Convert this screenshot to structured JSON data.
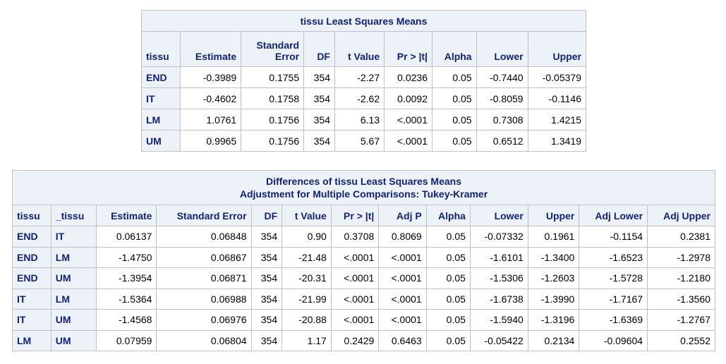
{
  "table1": {
    "title": "tissu Least Squares Means",
    "headers": [
      "tissu",
      "Estimate",
      "Standard\nError",
      "DF",
      "t Value",
      "Pr > |t|",
      "Alpha",
      "Lower",
      "Upper"
    ],
    "header_line1": [
      "",
      "",
      "Standard",
      "",
      "",
      "",
      "",
      "",
      ""
    ],
    "header_line2": [
      "tissu",
      "Estimate",
      "Error",
      "DF",
      "t Value",
      "Pr > |t|",
      "Alpha",
      "Lower",
      "Upper"
    ],
    "rows": [
      [
        "END",
        "-0.3989",
        "0.1755",
        "354",
        "-2.27",
        "0.0236",
        "0.05",
        "-0.7440",
        "-0.05379"
      ],
      [
        "IT",
        "-0.4602",
        "0.1758",
        "354",
        "-2.62",
        "0.0092",
        "0.05",
        "-0.8059",
        "-0.1146"
      ],
      [
        "LM",
        "1.0761",
        "0.1756",
        "354",
        "6.13",
        "<.0001",
        "0.05",
        "0.7308",
        "1.4215"
      ],
      [
        "UM",
        "0.9965",
        "0.1756",
        "354",
        "5.67",
        "<.0001",
        "0.05",
        "0.6512",
        "1.3419"
      ]
    ]
  },
  "table2": {
    "title": "Differences of tissu Least Squares Means",
    "subtitle": "Adjustment for Multiple Comparisons: Tukey-Kramer",
    "headers": [
      "tissu",
      "_tissu",
      "Estimate",
      "Standard Error",
      "DF",
      "t Value",
      "Pr > |t|",
      "Adj P",
      "Alpha",
      "Lower",
      "Upper",
      "Adj Lower",
      "Adj Upper"
    ],
    "rows": [
      [
        "END",
        "IT",
        "0.06137",
        "0.06848",
        "354",
        "0.90",
        "0.3708",
        "0.8069",
        "0.05",
        "-0.07332",
        "0.1961",
        "-0.1154",
        "0.2381"
      ],
      [
        "END",
        "LM",
        "-1.4750",
        "0.06867",
        "354",
        "-21.48",
        "<.0001",
        "<.0001",
        "0.05",
        "-1.6101",
        "-1.3400",
        "-1.6523",
        "-1.2978"
      ],
      [
        "END",
        "UM",
        "-1.3954",
        "0.06871",
        "354",
        "-20.31",
        "<.0001",
        "<.0001",
        "0.05",
        "-1.5306",
        "-1.2603",
        "-1.5728",
        "-1.2180"
      ],
      [
        "IT",
        "LM",
        "-1.5364",
        "0.06988",
        "354",
        "-21.99",
        "<.0001",
        "<.0001",
        "0.05",
        "-1.6738",
        "-1.3990",
        "-1.7167",
        "-1.3560"
      ],
      [
        "IT",
        "UM",
        "-1.4568",
        "0.06976",
        "354",
        "-20.88",
        "<.0001",
        "<.0001",
        "0.05",
        "-1.5940",
        "-1.3196",
        "-1.6369",
        "-1.2767"
      ],
      [
        "LM",
        "UM",
        "0.07959",
        "0.06804",
        "354",
        "1.17",
        "0.2429",
        "0.6463",
        "0.05",
        "-0.05422",
        "0.2134",
        "-0.09604",
        "0.2552"
      ]
    ]
  }
}
